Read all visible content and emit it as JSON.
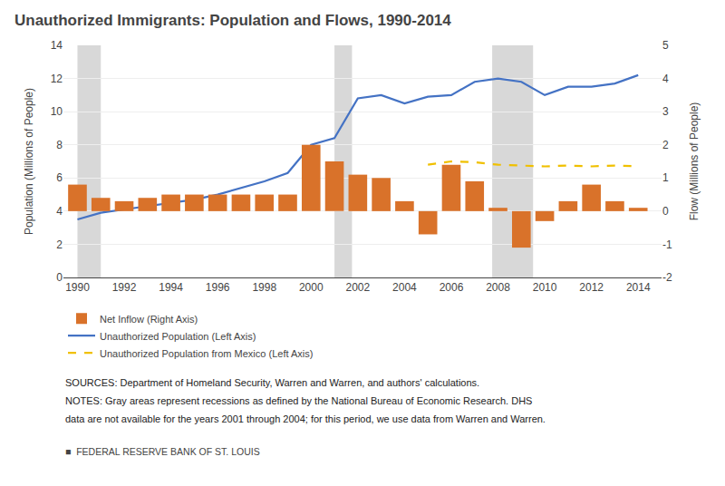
{
  "chart_data": {
    "type": "bar",
    "title": "Unauthorized Immigrants: Population and Flows, 1990-2014",
    "ylabel": "Population (Millions of People)",
    "y2label": "Flow (Millions of People)",
    "x": [
      1990,
      1991,
      1992,
      1993,
      1994,
      1995,
      1996,
      1997,
      1998,
      1999,
      2000,
      2001,
      2002,
      2003,
      2004,
      2005,
      2006,
      2007,
      2008,
      2009,
      2010,
      2011,
      2012,
      2013,
      2014
    ],
    "series": [
      {
        "name": "Net Inflow (Right Axis)",
        "type": "bar",
        "axis": "y2",
        "color": "#d9722a",
        "values": [
          0.8,
          0.4,
          0.3,
          0.4,
          0.5,
          0.5,
          0.5,
          0.5,
          0.5,
          0.5,
          2.0,
          1.5,
          1.1,
          1.0,
          0.3,
          -0.7,
          1.4,
          0.9,
          0.1,
          -1.1,
          -0.3,
          0.3,
          0.8,
          0.3,
          0.1
        ]
      },
      {
        "name": "Unauthorized Population (Left Axis)",
        "type": "line",
        "line_style": "solid",
        "color": "#4472c4",
        "values": [
          3.5,
          3.9,
          4.1,
          4.3,
          4.5,
          4.7,
          5.0,
          5.4,
          5.8,
          6.3,
          8.0,
          8.4,
          10.8,
          11.0,
          10.5,
          10.9,
          11.0,
          11.8,
          12.0,
          11.8,
          11.0,
          11.5,
          11.5,
          11.7,
          12.2
        ]
      },
      {
        "name": "Unauthorized Population from Mexico (Left Axis)",
        "type": "line",
        "line_style": "dashed",
        "color": "#f0c000",
        "values": [
          null,
          null,
          null,
          null,
          null,
          null,
          null,
          null,
          null,
          null,
          null,
          null,
          null,
          null,
          null,
          6.8,
          7.0,
          6.95,
          6.8,
          6.75,
          6.7,
          6.75,
          6.7,
          6.75,
          6.7
        ]
      }
    ],
    "shading": {
      "ranges": [
        [
          1990.0,
          1991.0
        ],
        [
          2001.0,
          2001.75
        ],
        [
          2007.75,
          2009.5
        ]
      ],
      "color": "#d8d8d8"
    },
    "xlim": [
      1989.4,
      2015.0
    ],
    "xticks": [
      1990,
      1992,
      1994,
      1996,
      1998,
      2000,
      2002,
      2004,
      2006,
      2008,
      2010,
      2012,
      2014
    ],
    "ylim": [
      0,
      14
    ],
    "yticks": [
      0,
      2,
      4,
      6,
      8,
      10,
      12,
      14
    ],
    "y2lim": [
      -2,
      5
    ],
    "y2ticks": [
      -2,
      -1,
      0,
      1,
      2,
      3,
      4,
      5
    ],
    "grid": true,
    "legend": "bottom",
    "annotations": [
      "SOURCES: Department of Homeland Security, Warren and Warren, and authors' calculations.",
      "NOTES: Gray areas represent recessions as defined by the National Bureau of Economic Research. DHS",
      "data are not available for the years 2001 through 2004; for this period, we use data from Warren and Warren.",
      "■  FEDERAL RESERVE BANK OF ST. LOUIS"
    ]
  }
}
